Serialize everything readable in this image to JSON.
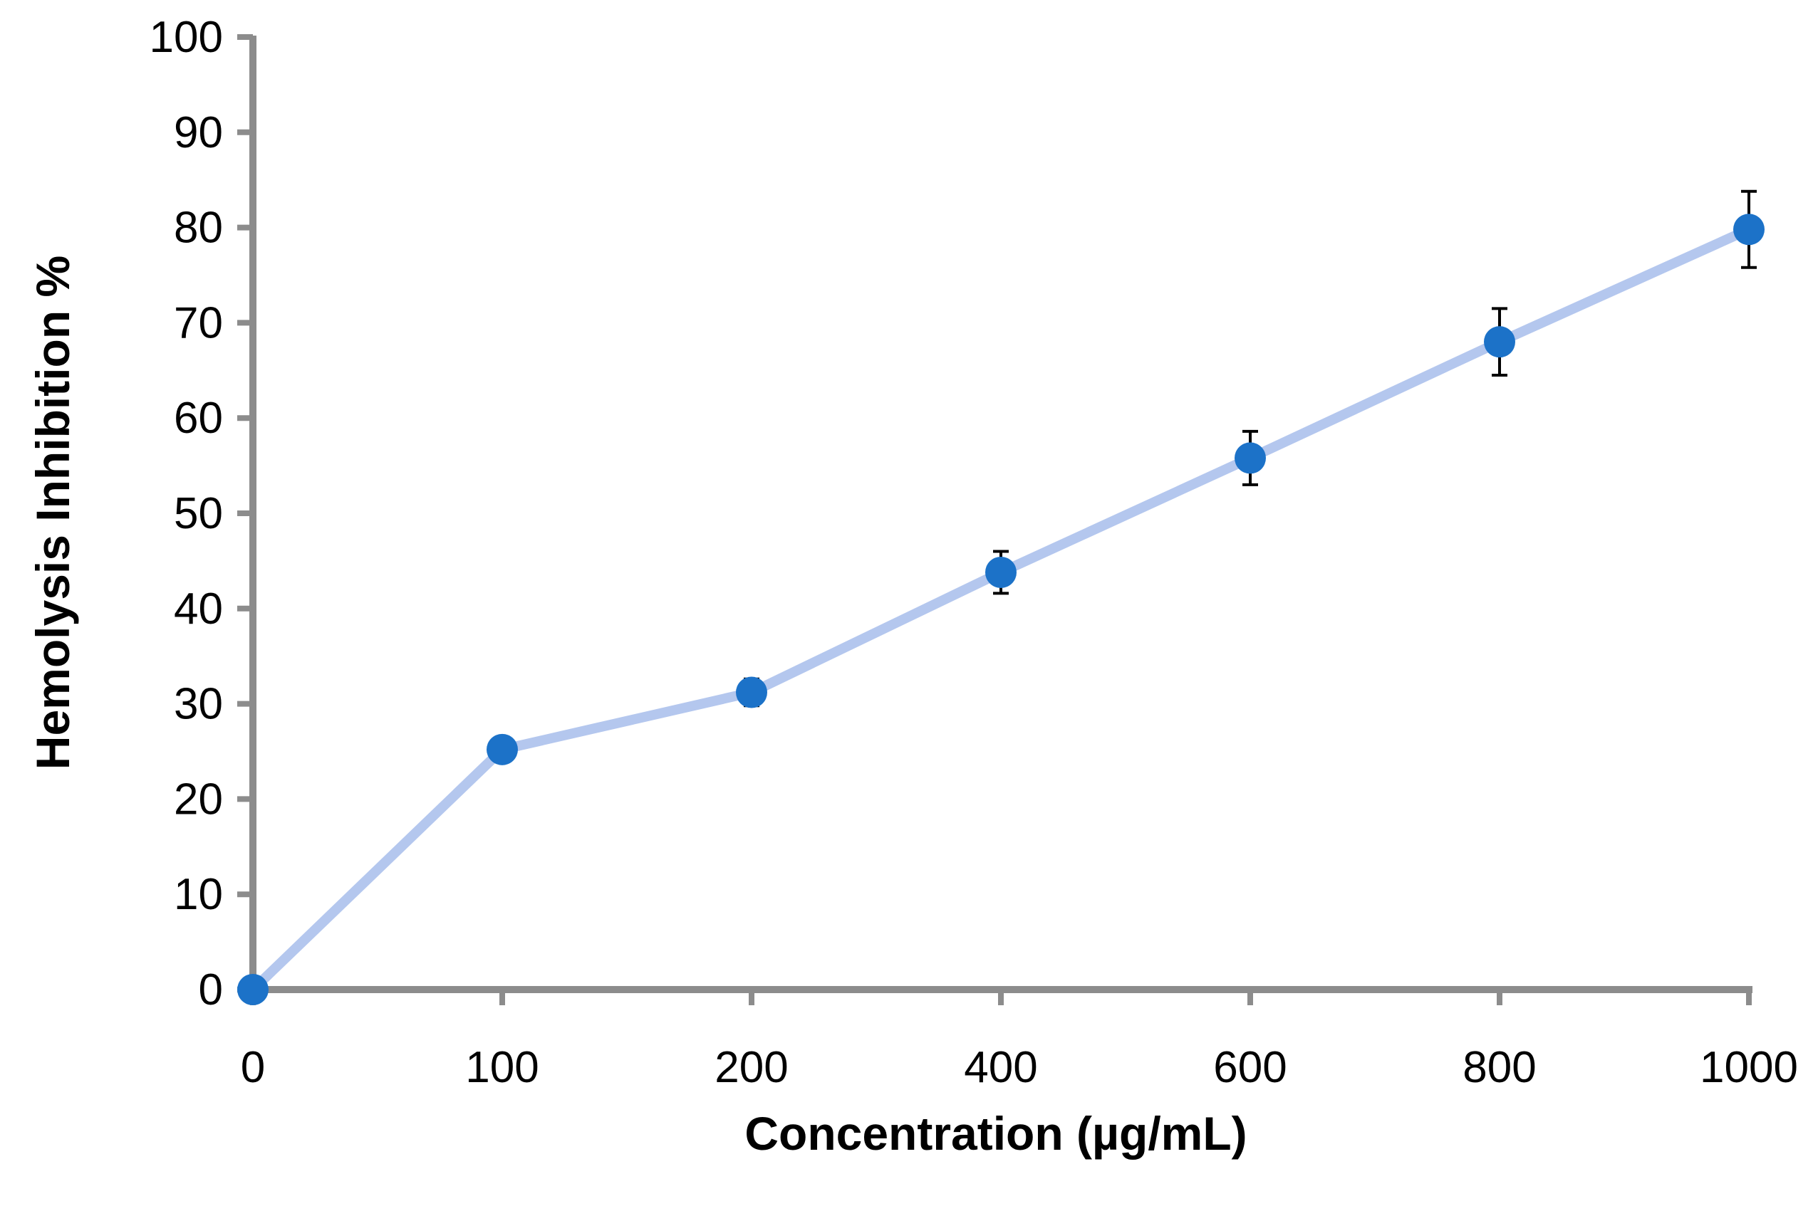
{
  "chart_data": {
    "type": "line",
    "title": "",
    "xlabel": "Concentration (µg/mL)",
    "ylabel": "Hemolysis Inhibition %",
    "categories": [
      "0",
      "100",
      "200",
      "400",
      "600",
      "800",
      "1000"
    ],
    "ylim": [
      0,
      100
    ],
    "yticks": [
      "0",
      "10",
      "20",
      "30",
      "40",
      "50",
      "60",
      "70",
      "80",
      "90",
      "100"
    ],
    "series": [
      {
        "name": "Hemolysis Inhibition",
        "values": [
          0,
          25.2,
          31.2,
          43.8,
          55.8,
          68.0,
          79.8
        ],
        "errors": [
          0,
          1.0,
          1.4,
          2.2,
          2.8,
          3.5,
          4.0
        ],
        "line_color": "#b4c7ee",
        "marker_color": "#1c72c8"
      }
    ],
    "axis_color": "#8c8c8c",
    "errorbar_color": "#000000",
    "grid": false,
    "legend": "none"
  }
}
